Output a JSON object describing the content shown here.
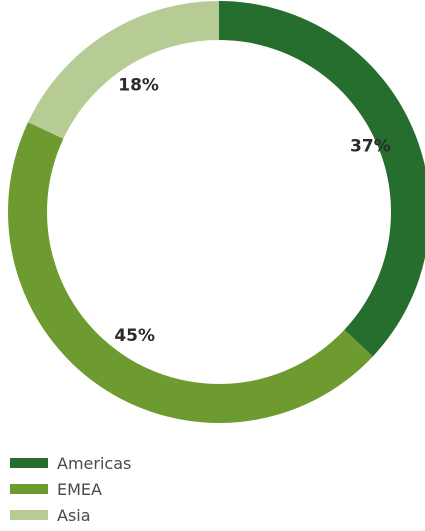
{
  "chart_data": {
    "type": "pie",
    "variant": "donut",
    "categories": [
      "Americas",
      "EMEA",
      "Asia"
    ],
    "values": [
      37,
      45,
      18
    ],
    "value_labels": [
      "37%",
      "45%",
      "18%"
    ],
    "colors": [
      "#256e2d",
      "#6d9b2f",
      "#b7cc95"
    ],
    "start_angle": "top, clockwise",
    "legend": "bottom-left",
    "title": ""
  }
}
